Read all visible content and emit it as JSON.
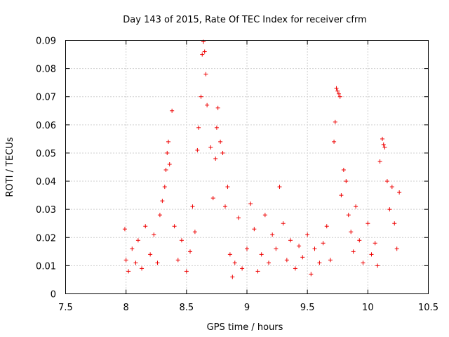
{
  "chart_data": {
    "type": "scatter",
    "title": "Day 143 of 2015, Rate Of TEC Index for receiver cfrm",
    "xlabel": "GPS time / hours",
    "ylabel": "ROTI / TECUs",
    "xlim": [
      7.5,
      10.5
    ],
    "ylim": [
      0,
      0.09
    ],
    "xticks": [
      7.5,
      8,
      8.5,
      9,
      9.5,
      10,
      10.5
    ],
    "xtick_labels": [
      "7.5",
      "8",
      "8.5",
      "9",
      "9.5",
      "10",
      "10.5"
    ],
    "yticks": [
      0,
      0.01,
      0.02,
      0.03,
      0.04,
      0.05,
      0.06,
      0.07,
      0.08,
      0.09
    ],
    "ytick_labels": [
      "0",
      "0.01",
      "0.02",
      "0.03",
      "0.04",
      "0.05",
      "0.06",
      "0.07",
      "0.08",
      "0.09"
    ],
    "grid": true,
    "marker": "+",
    "marker_color": "#ee0000",
    "series": [
      {
        "name": "ROTI",
        "x": [
          7.99,
          8.0,
          8.02,
          8.05,
          8.08,
          8.1,
          8.13,
          8.16,
          8.2,
          8.23,
          8.26,
          8.28,
          8.3,
          8.32,
          8.33,
          8.34,
          8.35,
          8.36,
          8.38,
          8.4,
          8.43,
          8.46,
          8.5,
          8.53,
          8.55,
          8.57,
          8.59,
          8.6,
          8.62,
          8.63,
          8.64,
          8.65,
          8.66,
          8.67,
          8.7,
          8.72,
          8.74,
          8.75,
          8.76,
          8.78,
          8.8,
          8.82,
          8.84,
          8.86,
          8.88,
          8.9,
          8.93,
          8.96,
          9.0,
          9.03,
          9.06,
          9.09,
          9.12,
          9.15,
          9.18,
          9.21,
          9.24,
          9.27,
          9.3,
          9.33,
          9.36,
          9.4,
          9.43,
          9.46,
          9.5,
          9.53,
          9.56,
          9.6,
          9.63,
          9.66,
          9.69,
          9.72,
          9.73,
          9.74,
          9.75,
          9.76,
          9.77,
          9.78,
          9.8,
          9.82,
          9.84,
          9.86,
          9.88,
          9.9,
          9.93,
          9.96,
          10.0,
          10.03,
          10.06,
          10.08,
          10.1,
          10.12,
          10.13,
          10.14,
          10.16,
          10.18,
          10.2,
          10.22,
          10.24,
          10.26
        ],
        "y": [
          0.023,
          0.012,
          0.008,
          0.016,
          0.011,
          0.019,
          0.009,
          0.024,
          0.014,
          0.021,
          0.011,
          0.028,
          0.033,
          0.038,
          0.044,
          0.05,
          0.054,
          0.046,
          0.065,
          0.024,
          0.012,
          0.019,
          0.008,
          0.015,
          0.031,
          0.022,
          0.051,
          0.059,
          0.07,
          0.085,
          0.0895,
          0.086,
          0.078,
          0.067,
          0.052,
          0.034,
          0.048,
          0.059,
          0.066,
          0.054,
          0.05,
          0.031,
          0.038,
          0.014,
          0.006,
          0.011,
          0.027,
          0.009,
          0.016,
          0.032,
          0.023,
          0.008,
          0.014,
          0.028,
          0.011,
          0.021,
          0.016,
          0.038,
          0.025,
          0.012,
          0.019,
          0.009,
          0.017,
          0.013,
          0.021,
          0.007,
          0.016,
          0.011,
          0.018,
          0.024,
          0.012,
          0.054,
          0.061,
          0.073,
          0.072,
          0.071,
          0.07,
          0.035,
          0.044,
          0.04,
          0.028,
          0.022,
          0.015,
          0.031,
          0.019,
          0.011,
          0.025,
          0.014,
          0.018,
          0.01,
          0.047,
          0.055,
          0.053,
          0.052,
          0.04,
          0.03,
          0.038,
          0.025,
          0.016,
          0.036
        ]
      }
    ]
  }
}
